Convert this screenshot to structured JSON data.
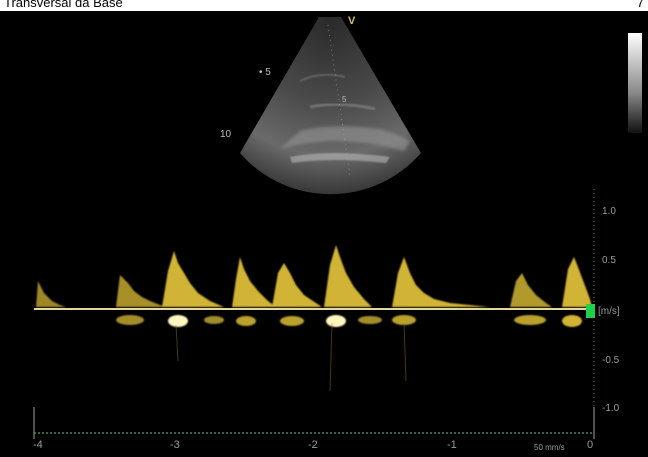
{
  "header": {
    "title": "Transversal da Base",
    "number": "7"
  },
  "sector": {
    "depth_5": "5",
    "depth_10": "10",
    "dot5": "• 5",
    "v_mark": "V",
    "inner_5": "5"
  },
  "velocity_axis": {
    "unit": "[m/s]",
    "ticks": [
      "1.0",
      "0.5",
      "-0.5",
      "-1.0"
    ]
  },
  "time_axis": {
    "ticks": [
      "-4",
      "-3",
      "-2",
      "-1",
      "0"
    ],
    "speed": "50 mm/s"
  },
  "colors": {
    "spectrum": "#e8c83a",
    "baseline": "#e0d8a0",
    "indicator": "#1fd04a",
    "axis_green": "#3a8a5a"
  }
}
